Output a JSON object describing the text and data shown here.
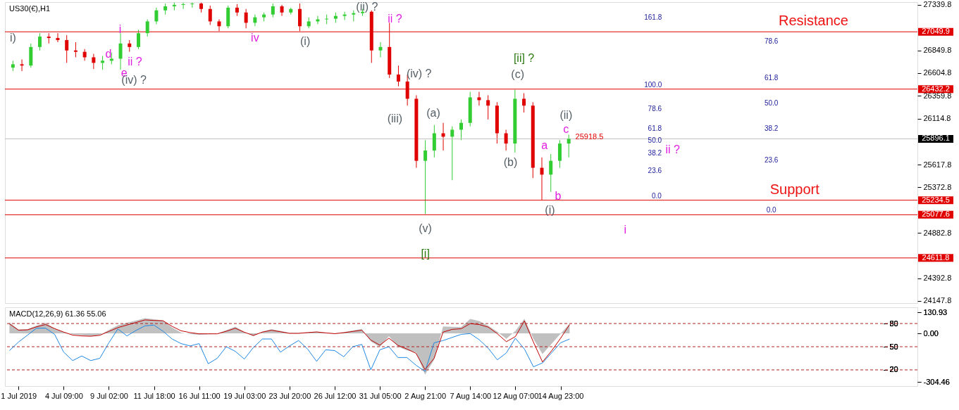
{
  "chart_data": [
    {
      "type": "candlestick",
      "title": "US30(€),H1",
      "categories": [
        null,
        null,
        null,
        null,
        null,
        null,
        null,
        null,
        null,
        null,
        null,
        null,
        null,
        null,
        null,
        null,
        null,
        null,
        null,
        null,
        null,
        null,
        null,
        null,
        null,
        null,
        null,
        null,
        null,
        null,
        null,
        null,
        null,
        null,
        null,
        null,
        null,
        null,
        null,
        null,
        null,
        null,
        null,
        null,
        null,
        null,
        null,
        null,
        null,
        null,
        null,
        null,
        null,
        null,
        null,
        null,
        null,
        null,
        null,
        null,
        null,
        null,
        null,
        null,
        null,
        null,
        null,
        null,
        null,
        null,
        null,
        null,
        null,
        null,
        null,
        null,
        null,
        null,
        null,
        null,
        null,
        null,
        null,
        null,
        null,
        null,
        null,
        null,
        null,
        null,
        null,
        null,
        null,
        null,
        null,
        null,
        null,
        null,
        null,
        null,
        null
      ],
      "ohlc": [
        [
          26663,
          26738,
          26626,
          26700
        ],
        [
          26700,
          26752,
          26626,
          26686
        ],
        [
          26686,
          26924,
          26663,
          26886
        ],
        [
          26886,
          27035,
          26849,
          26998
        ],
        [
          26998,
          27035,
          26924,
          26983
        ],
        [
          26983,
          27035,
          26938,
          26961
        ],
        [
          26961,
          27013,
          26715,
          26849
        ],
        [
          26849,
          26938,
          26775,
          26834
        ],
        [
          26834,
          26864,
          26738,
          26775
        ],
        [
          26775,
          26812,
          26648,
          26715
        ],
        [
          26715,
          26790,
          26641,
          26738
        ],
        [
          26738,
          26827,
          26700,
          26760
        ],
        [
          26760,
          27035,
          26641,
          26924
        ],
        [
          26924,
          26961,
          26834,
          26886
        ],
        [
          26886,
          27072,
          26864,
          27035
        ],
        [
          27035,
          27184,
          26998,
          27162
        ],
        [
          27162,
          27310,
          27132,
          27281
        ],
        [
          27281,
          27355,
          27236,
          27325
        ],
        [
          27325,
          27365,
          27281,
          27340
        ],
        [
          27340,
          27365,
          27296,
          27348
        ],
        [
          27348,
          27365,
          27310,
          27355
        ],
        [
          27355,
          27365,
          27258,
          27296
        ],
        [
          27296,
          27333,
          27124,
          27162
        ],
        [
          27162,
          27184,
          27057,
          27110
        ],
        [
          27110,
          27333,
          27087,
          27310
        ],
        [
          27310,
          27348,
          27221,
          27258
        ],
        [
          27258,
          27296,
          27087,
          27147
        ],
        [
          27147,
          27236,
          27110,
          27206
        ],
        [
          27206,
          27258,
          27162,
          27236
        ],
        [
          27236,
          27355,
          27206,
          27325
        ],
        [
          27325,
          27340,
          27221,
          27258
        ],
        [
          27258,
          27310,
          27236,
          27296
        ],
        [
          27296,
          27355,
          27057,
          27110
        ],
        [
          27110,
          27206,
          27087,
          27162
        ],
        [
          27162,
          27221,
          27132,
          27184
        ],
        [
          27184,
          27236,
          27132,
          27191
        ],
        [
          27191,
          27258,
          27147,
          27221
        ],
        [
          27221,
          27266,
          27177,
          27236
        ],
        [
          27236,
          27281,
          27162,
          27251
        ],
        [
          27251,
          27296,
          27221,
          27266
        ],
        [
          27266,
          27281,
          26715,
          26849
        ],
        [
          26849,
          26938,
          26775,
          26886
        ],
        [
          26886,
          27147,
          26552,
          26589
        ],
        [
          26589,
          26686,
          26462,
          26514
        ],
        [
          26514,
          26589,
          26254,
          26328
        ],
        [
          26328,
          26366,
          25584,
          25659
        ],
        [
          25659,
          25882,
          25085,
          25770
        ],
        [
          25770,
          26046,
          25696,
          25956
        ],
        [
          25956,
          26068,
          25770,
          25919
        ],
        [
          25919,
          26031,
          25450,
          25994
        ],
        [
          25994,
          26105,
          25882,
          26068
        ],
        [
          26068,
          26403,
          26031,
          26343
        ],
        [
          26343,
          26403,
          26254,
          26313
        ],
        [
          26313,
          26366,
          26105,
          26254
        ],
        [
          26254,
          26291,
          25845,
          25956
        ],
        [
          25956,
          25994,
          25770,
          25845
        ],
        [
          25845,
          26425,
          25748,
          26328
        ],
        [
          26328,
          26388,
          26180,
          26254
        ],
        [
          26254,
          26291,
          25473,
          25584
        ],
        [
          25584,
          25696,
          25235,
          25510
        ],
        [
          25510,
          25733,
          25324,
          25659
        ],
        [
          25659,
          25882,
          25584,
          25845
        ],
        [
          25845,
          25941,
          25696,
          25896.1
        ],
        null,
        null,
        null,
        null,
        null,
        null,
        null,
        null,
        null,
        null,
        null,
        null,
        null,
        null,
        null,
        null,
        null,
        null,
        null,
        null,
        null,
        null,
        null,
        null,
        null,
        null,
        null,
        null,
        null,
        null,
        null,
        null,
        null,
        null,
        null,
        null,
        null,
        null
      ],
      "colors": [
        "#32cd32",
        "#e00000",
        "#32cd32",
        "#32cd32",
        "#e00000",
        "#e00000",
        "#e00000",
        "#e00000",
        "#e00000",
        "#e00000",
        "#32cd32",
        "#32cd32",
        "#32cd32",
        "#e00000",
        "#32cd32",
        "#32cd32",
        "#32cd32",
        "#32cd32",
        "#32cd32",
        "#32cd32",
        "#32cd32",
        "#e00000",
        "#e00000",
        "#e00000",
        "#32cd32",
        "#e00000",
        "#e00000",
        "#32cd32",
        "#32cd32",
        "#32cd32",
        "#e00000",
        "#32cd32",
        "#e00000",
        "#32cd32",
        "#32cd32",
        "#32cd32",
        "#32cd32",
        "#32cd32",
        "#32cd32",
        "#32cd32",
        "#e00000",
        "#32cd32",
        "#e00000",
        "#e00000",
        "#e00000",
        "#e00000",
        "#32cd32",
        "#32cd32",
        "#e00000",
        "#32cd32",
        "#32cd32",
        "#32cd32",
        "#e00000",
        "#e00000",
        "#e00000",
        "#e00000",
        "#32cd32",
        "#e00000",
        "#e00000",
        "#e00000",
        "#32cd32",
        "#32cd32",
        "#32cd32",
        null,
        null,
        null,
        null,
        null,
        null,
        null,
        null,
        null,
        null,
        null,
        null,
        null,
        null,
        null,
        null,
        null,
        null,
        null,
        null,
        null,
        null,
        null,
        null,
        null,
        null,
        null,
        null,
        null,
        null,
        null,
        null,
        null,
        null,
        null,
        null,
        null,
        null
      ],
      "ylim": [
        24125,
        27370
      ],
      "yticks": [
        27339.8,
        26849.8,
        26604.8,
        26359.8,
        26114.8,
        25617.8,
        25372.8,
        24882.8,
        24392.8,
        24147.8
      ],
      "tick_labels": "y",
      "ref_lines": [
        {
          "axis": "y",
          "value": 27049.9,
          "label": "27049.9",
          "color": "#e00000"
        },
        {
          "axis": "y",
          "value": 26432.2,
          "label": "26432.2",
          "color": "#e00000"
        },
        {
          "axis": "y",
          "value": 25896.1,
          "label": "25896.1",
          "color": "#c0c0c0"
        },
        {
          "axis": "y",
          "value": 25234.5,
          "label": "25234.5",
          "color": "#e00000"
        },
        {
          "axis": "y",
          "value": 25077.6,
          "label": "25077.6",
          "color": "#e00000"
        },
        {
          "axis": "y",
          "value": 24611.8,
          "label": "24611.8",
          "color": "#e00000"
        }
      ],
      "annotations": [
        "i)",
        "i",
        "d",
        "ii ?",
        "e",
        "(iv) ?",
        "iv",
        "(i)",
        "(ii) ?",
        "ii ?",
        "(iv) ?",
        "(iii)",
        "(a)",
        "(v)",
        "[i]",
        "[ii] ?",
        "(c)",
        "(b)",
        "(ii)",
        "c",
        "a",
        "b",
        "(i)",
        "25918.5",
        "i",
        "ii ?",
        "Resistance",
        "Support",
        "161.8",
        "100.0",
        "78.6",
        "61.8",
        "50.0",
        "38.2",
        "23.6",
        "0.0",
        "78.6",
        "61.8",
        "50.0",
        "38.2",
        "23.6",
        "0.0"
      ],
      "grid": false
    },
    {
      "type": "line",
      "title": "MACD(12,26,9) 61.36 55.06",
      "categories": [
        null,
        "1 Jul 2019",
        null,
        null,
        null,
        null,
        "4 Jul 09:00",
        null,
        null,
        null,
        null,
        "9 Jul 02:00",
        null,
        null,
        null,
        null,
        "11 Jul 18:00",
        null,
        null,
        null,
        null,
        "16 Jul 11:00",
        null,
        null,
        null,
        null,
        "19 Jul 03:00",
        null,
        null,
        null,
        null,
        "23 Jul 20:00",
        null,
        null,
        null,
        null,
        "26 Jul 12:00",
        null,
        null,
        null,
        null,
        "31 Jul 05:00",
        null,
        null,
        null,
        null,
        "2 Aug 21:00",
        null,
        null,
        null,
        null,
        "7 Aug 14:00",
        null,
        null,
        null,
        null,
        "12 Aug 07:00",
        null,
        null,
        null,
        null,
        "14 Aug 23:00",
        null,
        null,
        null,
        null,
        null,
        null,
        null,
        null,
        null,
        null,
        null,
        null,
        null,
        null,
        null,
        null,
        null,
        null,
        null,
        null,
        null,
        null,
        null,
        null,
        null,
        null,
        null,
        null,
        null,
        null,
        null,
        null,
        null,
        null,
        null,
        null,
        null,
        null,
        null
      ],
      "series": [
        {
          "type": "area",
          "color": "#c0c0c0",
          "values": [
            68,
            24,
            26,
            49,
            66,
            30,
            9,
            -7,
            -11,
            -17,
            -10,
            21,
            51,
            66,
            81,
            95,
            88,
            81,
            37,
            5,
            -4,
            -9,
            -5,
            -1,
            20,
            42,
            9,
            -17,
            11,
            26,
            15,
            3,
            3,
            6,
            10,
            5,
            0,
            8,
            18,
            28,
            -51,
            -86,
            -17,
            -83,
            -107,
            -119,
            -258,
            -166,
            43,
            41,
            40,
            90,
            77,
            48,
            10,
            -34,
            15,
            91,
            -35,
            -130,
            -66,
            -2,
            61,
            null,
            null,
            null,
            null,
            null,
            null,
            null,
            null,
            null,
            null,
            null,
            null,
            null,
            null,
            null,
            null,
            null,
            null,
            null,
            null,
            null,
            null,
            null,
            null,
            null,
            null,
            null,
            null,
            null,
            null,
            null,
            null,
            null,
            null,
            null,
            null,
            null,
            null
          ]
        },
        {
          "type": "line",
          "color": "#1e88e5",
          "axis": "y2",
          "values": [
            45,
            56,
            65,
            74,
            74,
            66,
            43,
            32,
            38,
            32,
            35,
            55,
            73,
            64,
            71,
            77,
            78,
            70,
            60,
            54,
            51,
            54,
            28,
            35,
            50,
            44,
            34,
            49,
            60,
            60,
            43,
            51,
            58,
            47,
            31,
            46,
            45,
            37,
            50,
            53,
            20,
            46,
            50,
            36,
            36,
            26,
            18,
            55,
            58,
            62,
            66,
            67,
            59,
            48,
            33,
            42,
            61,
            47,
            24,
            29,
            42,
            55,
            60,
            null,
            null,
            null,
            null,
            null,
            null,
            null,
            null,
            null,
            null,
            null,
            null,
            null,
            null,
            null,
            null,
            null,
            null,
            null,
            null,
            null,
            null,
            null,
            null,
            null,
            null,
            null,
            null,
            null,
            null,
            null,
            null,
            null,
            null,
            null,
            null,
            null,
            null
          ]
        },
        {
          "type": "line",
          "color": "#c00000",
          "values": [
            59,
            20,
            22,
            41,
            55,
            30,
            8,
            -11,
            -16,
            -18,
            -12,
            12,
            36,
            52,
            68,
            84,
            81,
            79,
            44,
            16,
            5,
            -3,
            -3,
            -3,
            13,
            32,
            7,
            -13,
            8,
            19,
            10,
            0,
            0,
            5,
            9,
            3,
            -2,
            4,
            12,
            20,
            -42,
            -74,
            -30,
            -75,
            -98,
            -125,
            -227,
            -156,
            8,
            25,
            29,
            61,
            55,
            39,
            -2,
            -52,
            -20,
            78,
            -55,
            -179,
            -110,
            -31,
            55,
            null,
            null,
            null,
            null,
            null,
            null,
            null,
            null,
            null,
            null,
            null,
            null,
            null,
            null,
            null,
            null,
            null,
            null,
            null,
            null,
            null,
            null,
            null,
            null,
            null,
            null,
            null,
            null,
            null,
            null,
            null,
            null,
            null,
            null,
            null,
            null,
            null,
            null
          ]
        }
      ],
      "ylim": [
        -330,
        163
      ],
      "yticks": [
        130.93,
        {
          "value": 0,
          "label": "0.00"
        },
        -304.46
      ],
      "ref_lines": [
        {
          "axis": "y2",
          "value": 80,
          "color": "#b02020",
          "line_style": "dashed"
        },
        {
          "axis": "y2",
          "value": 50,
          "color": "#b02020",
          "line_style": "dashed"
        },
        {
          "axis": "y2",
          "value": 20,
          "color": "#b02020",
          "line_style": "dashed"
        }
      ],
      "y2lim": [
        -1,
        101
      ],
      "y2ticks": [
        80,
        50,
        20
      ],
      "line_style": "solid",
      "marker": "none",
      "grid": false
    }
  ]
}
